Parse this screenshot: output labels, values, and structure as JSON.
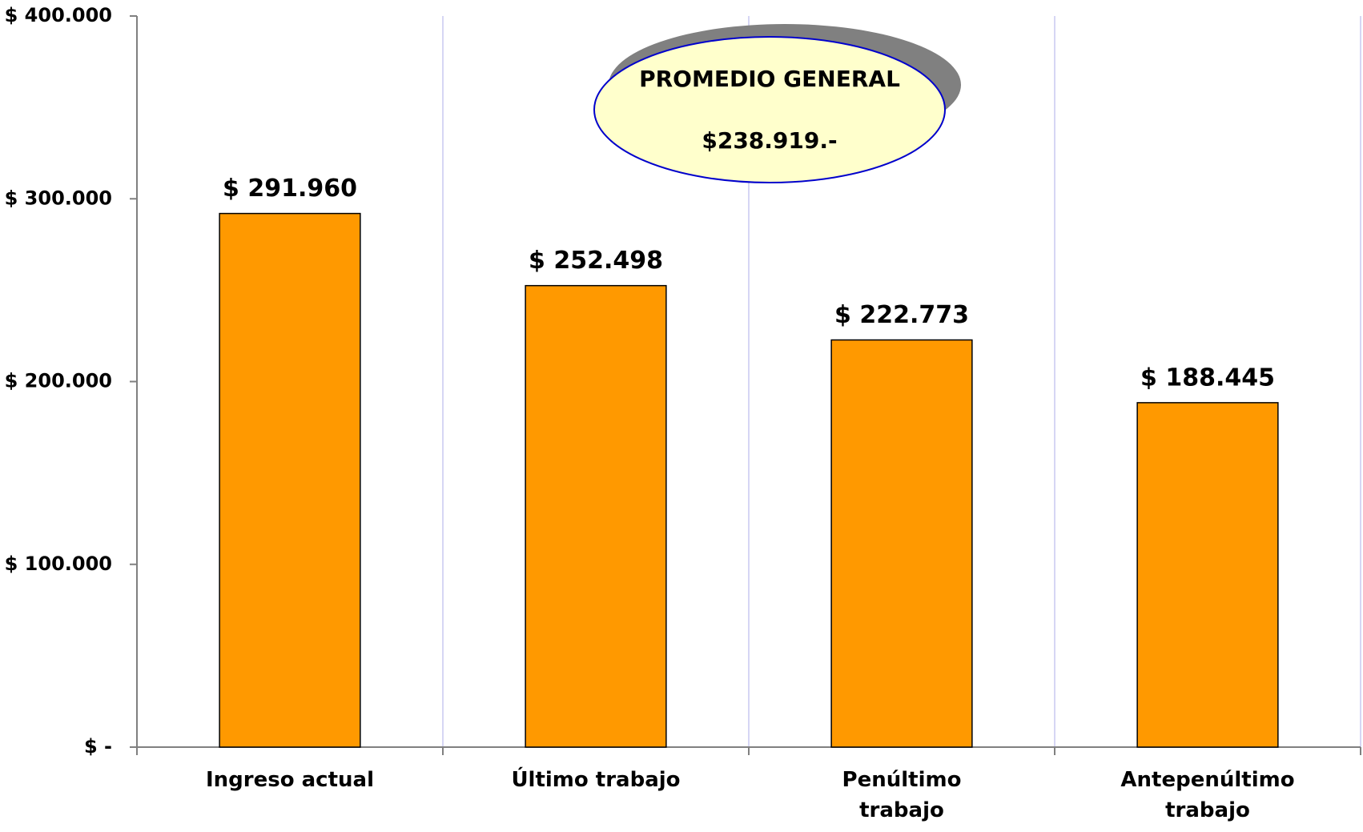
{
  "chart_data": {
    "type": "bar",
    "categories": [
      "Ingreso actual",
      "Último trabajo",
      "Penúltimo trabajo",
      "Antepenúltimo trabajo"
    ],
    "values": [
      291960,
      252498,
      222773,
      188445
    ],
    "value_labels": [
      "$ 291.960",
      "$ 252.498",
      "$ 222.773",
      "$ 188.445"
    ],
    "color": "#ff9900",
    "ylim": [
      0,
      400000
    ],
    "yticks": [
      {
        "value": 0,
        "label": "$ -"
      },
      {
        "value": 100000,
        "label": "$ 100.000"
      },
      {
        "value": 200000,
        "label": "$ 200.000"
      },
      {
        "value": 300000,
        "label": "$ 300.000"
      },
      {
        "value": 400000,
        "label": "$ 400.000"
      }
    ],
    "annotations": [
      "PROMEDIO GENERAL",
      "$238.919.-"
    ]
  }
}
